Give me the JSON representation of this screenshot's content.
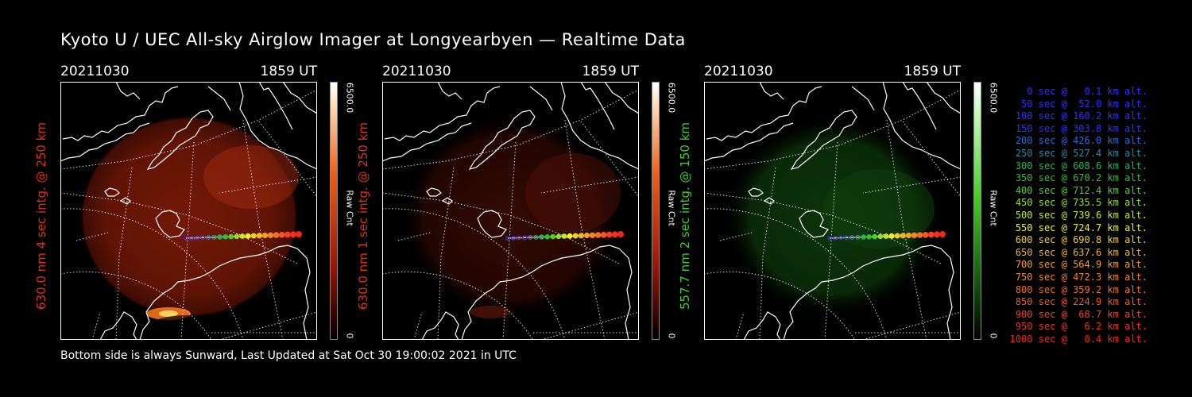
{
  "title": "Kyoto U / UEC All-sky Airglow Imager at Longyearbyen — Realtime Data",
  "footer": "Bottom side is always Sunward, Last Updated at Sat Oct 30 19:00:02 2021 in UTC",
  "panels": [
    {
      "date": "20211030",
      "time": "1859 UT",
      "label": "630.0 nm 4 sec intg. @ 250 km",
      "label_color": "#e03018",
      "cb_max": "6500.0",
      "cb_unit": "Raw Cnt",
      "cb_min": "0",
      "glow": "red"
    },
    {
      "date": "20211030",
      "time": "1859 UT",
      "label": "630.0 nm 1 sec intg. @ 250 km",
      "label_color": "#e03018",
      "cb_max": "6500.0",
      "cb_unit": "Raw Cnt",
      "cb_min": "0",
      "glow": "darkred"
    },
    {
      "date": "20211030",
      "time": "1859 UT",
      "label": "557.7 nm 2 sec intg. @ 150 km",
      "label_color": "#3ccc28",
      "cb_max": "6500.0",
      "cb_unit": "Raw Cnt",
      "cb_min": "0",
      "glow": "green"
    }
  ],
  "legend": [
    {
      "text": "0 sec @   0.1 km alt.",
      "color": "#3030ff"
    },
    {
      "text": "50 sec @  52.0 km alt.",
      "color": "#3030ff"
    },
    {
      "text": "100 sec @ 160.2 km alt.",
      "color": "#3030ff"
    },
    {
      "text": "150 sec @ 303.8 km alt.",
      "color": "#3030ff"
    },
    {
      "text": "200 sec @ 426.0 km alt.",
      "color": "#2a6cd8"
    },
    {
      "text": "250 sec @ 527.4 km alt.",
      "color": "#2a8aa0"
    },
    {
      "text": "300 sec @ 608.6 km alt.",
      "color": "#2ab060"
    },
    {
      "text": "350 sec @ 670.2 km alt.",
      "color": "#30c030"
    },
    {
      "text": "400 sec @ 712.4 km alt.",
      "color": "#50d030"
    },
    {
      "text": "450 sec @ 735.5 km alt.",
      "color": "#90e030"
    },
    {
      "text": "500 sec @ 739.6 km alt.",
      "color": "#c8e828"
    },
    {
      "text": "550 sec @ 724.7 km alt.",
      "color": "#f0f028"
    },
    {
      "text": "600 sec @ 690.8 km alt.",
      "color": "#f0d028"
    },
    {
      "text": "650 sec @ 637.6 km alt.",
      "color": "#f0b828"
    },
    {
      "text": "700 sec @ 564.9 km alt.",
      "color": "#f0a028"
    },
    {
      "text": "750 sec @ 472.3 km alt.",
      "color": "#f08828"
    },
    {
      "text": "800 sec @ 359.2 km alt.",
      "color": "#f07028"
    },
    {
      "text": "850 sec @ 224.9 km alt.",
      "color": "#f05828"
    },
    {
      "text": "900 sec @  68.7 km alt.",
      "color": "#f04028"
    },
    {
      "text": "950 sec @   6.2 km alt.",
      "color": "#f03020"
    },
    {
      "text": "1000 sec @   0.4 km alt.",
      "color": "#f02818"
    }
  ],
  "track_colors": [
    "#3030ff",
    "#3030ff",
    "#3030ff",
    "#3030ff",
    "#2a6cd8",
    "#2a8aa0",
    "#2ab060",
    "#30c030",
    "#50d030",
    "#90e030",
    "#c8e828",
    "#f0f028",
    "#f0d028",
    "#f0b828",
    "#f0a028",
    "#f08828",
    "#f07028",
    "#f05828",
    "#f04028",
    "#f03020",
    "#f02818"
  ]
}
